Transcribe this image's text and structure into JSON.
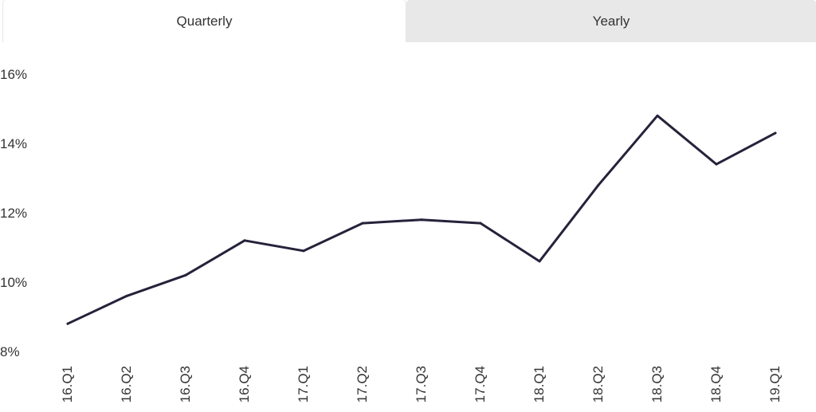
{
  "tabs": {
    "quarterly": "Quarterly",
    "yearly": "Yearly",
    "active": "quarterly"
  },
  "chart_data": {
    "type": "line",
    "title": "",
    "xlabel": "",
    "ylabel": "",
    "categories": [
      "16.Q1",
      "16.Q2",
      "16.Q3",
      "16.Q4",
      "17.Q1",
      "17.Q2",
      "17.Q3",
      "17.Q4",
      "18.Q1",
      "18.Q2",
      "18.Q3",
      "18.Q4",
      "19.Q1"
    ],
    "series": [
      {
        "values": [
          8.8,
          9.6,
          10.2,
          11.2,
          10.9,
          11.7,
          11.8,
          11.7,
          10.6,
          12.8,
          14.8,
          13.4,
          14.3
        ],
        "color": "#26223a"
      }
    ],
    "yticks": [
      8,
      10,
      12,
      14,
      16
    ],
    "ytick_labels": [
      "8%",
      "10%",
      "12%",
      "14%",
      "16%"
    ],
    "ylim": [
      8,
      16
    ],
    "grid": false,
    "legend": "none"
  }
}
